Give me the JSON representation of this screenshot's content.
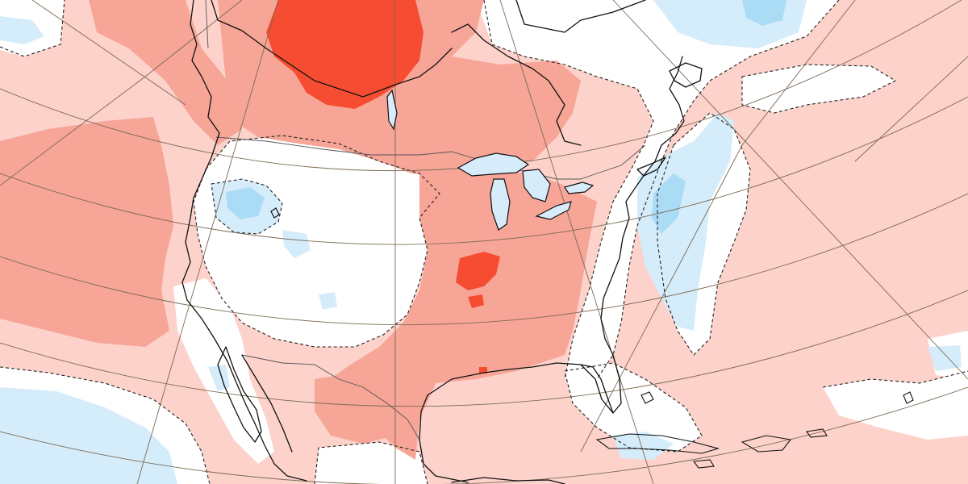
{
  "map": {
    "region": "North America",
    "projection": "polar-stereographic",
    "field": "anomaly",
    "colors": {
      "strong_warm": "#f64d32",
      "moderate_warm": "#f6a597",
      "weak_warm": "#fcd2cb",
      "neutral": "#ffffff",
      "weak_cool": "#d5ecfb",
      "moderate_cool": "#abdcf6",
      "coastline": "#111111",
      "graticule": "#7a6a52",
      "political_border": "#555555",
      "zero_contour": "#222222"
    },
    "zero_contour_style": "dashed",
    "legend": "",
    "title": ""
  }
}
